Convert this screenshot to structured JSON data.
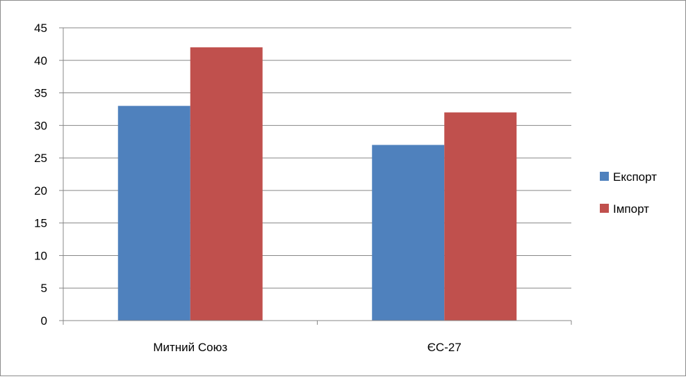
{
  "chart_data": {
    "type": "bar",
    "categories": [
      "Митний Союз",
      "ЄС-27"
    ],
    "series": [
      {
        "name": "Експорт",
        "values": [
          33,
          27
        ],
        "color": "#4f81bd"
      },
      {
        "name": "Імпорт",
        "values": [
          42,
          32
        ],
        "color": "#c0504d"
      }
    ],
    "ylim": [
      0,
      45
    ],
    "yticks": [
      0,
      5,
      10,
      15,
      20,
      25,
      30,
      35,
      40,
      45
    ],
    "grid": true,
    "legend": "right"
  }
}
